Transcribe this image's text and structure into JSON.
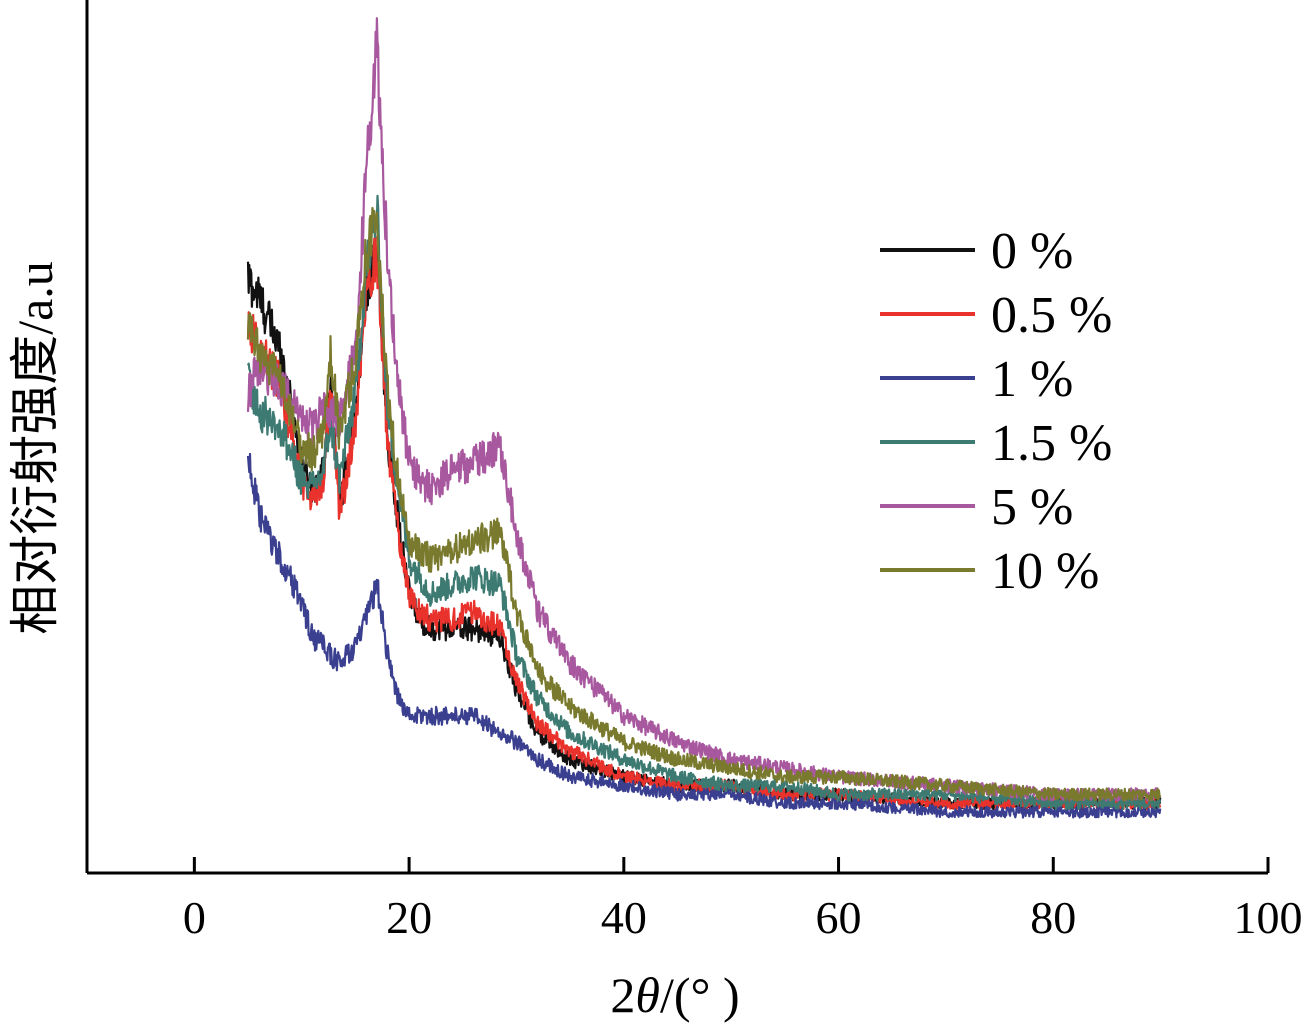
{
  "chart_data": {
    "type": "line",
    "title": "",
    "xlabel_prefix": "2",
    "xlabel_theta": "θ",
    "xlabel_suffix": "/(° )",
    "ylabel": "相对衍射强度/a.u",
    "xlim": [
      -10,
      100
    ],
    "ylim": [
      0,
      1
    ],
    "y_tick_labels": "none",
    "xticks": [
      0,
      20,
      40,
      60,
      80,
      100
    ],
    "xtick_labels": [
      "0",
      "20",
      "40",
      "60",
      "80",
      "100"
    ],
    "grid": false,
    "legend_position": "right",
    "x": [
      5,
      6,
      8,
      10,
      11,
      12,
      12.7,
      13.5,
      15,
      16,
      17,
      18,
      19,
      20,
      21,
      22,
      24,
      26,
      28.5,
      30,
      32,
      35,
      40,
      45,
      50,
      55,
      60,
      70,
      80,
      90
    ],
    "series": [
      {
        "name": "0 %",
        "color": "#111111",
        "values": [
          0.68,
          0.66,
          0.6,
          0.47,
          0.44,
          0.46,
          0.57,
          0.42,
          0.52,
          0.67,
          0.7,
          0.5,
          0.4,
          0.32,
          0.29,
          0.28,
          0.28,
          0.28,
          0.27,
          0.21,
          0.16,
          0.13,
          0.11,
          0.1,
          0.1,
          0.09,
          0.09,
          0.08,
          0.08,
          0.08
        ]
      },
      {
        "name": "0.5 %",
        "color": "#e8322b",
        "values": [
          0.63,
          0.6,
          0.56,
          0.45,
          0.43,
          0.45,
          0.56,
          0.41,
          0.51,
          0.67,
          0.71,
          0.49,
          0.39,
          0.32,
          0.3,
          0.29,
          0.29,
          0.3,
          0.28,
          0.22,
          0.17,
          0.14,
          0.11,
          0.1,
          0.1,
          0.09,
          0.09,
          0.08,
          0.08,
          0.08
        ]
      },
      {
        "name": "1 %",
        "color": "#3a3f8f",
        "values": [
          0.48,
          0.41,
          0.36,
          0.31,
          0.27,
          0.26,
          0.25,
          0.24,
          0.26,
          0.29,
          0.33,
          0.25,
          0.2,
          0.18,
          0.18,
          0.18,
          0.18,
          0.18,
          0.16,
          0.15,
          0.13,
          0.11,
          0.1,
          0.09,
          0.09,
          0.08,
          0.08,
          0.07,
          0.07,
          0.07
        ]
      },
      {
        "name": "1.5 %",
        "color": "#3d7a72",
        "values": [
          0.57,
          0.53,
          0.51,
          0.45,
          0.44,
          0.46,
          0.52,
          0.45,
          0.55,
          0.69,
          0.76,
          0.53,
          0.44,
          0.36,
          0.34,
          0.32,
          0.33,
          0.34,
          0.33,
          0.25,
          0.2,
          0.16,
          0.13,
          0.11,
          0.1,
          0.1,
          0.09,
          0.09,
          0.08,
          0.08
        ]
      },
      {
        "name": "5 %",
        "color": "#a8589e",
        "values": [
          0.55,
          0.58,
          0.56,
          0.52,
          0.51,
          0.53,
          0.53,
          0.52,
          0.6,
          0.8,
          0.95,
          0.7,
          0.56,
          0.47,
          0.45,
          0.44,
          0.46,
          0.47,
          0.49,
          0.39,
          0.3,
          0.24,
          0.18,
          0.15,
          0.13,
          0.12,
          0.11,
          0.1,
          0.09,
          0.09
        ]
      },
      {
        "name": "10 %",
        "color": "#7a7a2e",
        "values": [
          0.62,
          0.6,
          0.56,
          0.49,
          0.48,
          0.5,
          0.6,
          0.5,
          0.59,
          0.71,
          0.75,
          0.55,
          0.45,
          0.38,
          0.37,
          0.36,
          0.37,
          0.38,
          0.39,
          0.3,
          0.23,
          0.19,
          0.15,
          0.13,
          0.12,
          0.11,
          0.11,
          0.1,
          0.09,
          0.09
        ]
      }
    ]
  }
}
